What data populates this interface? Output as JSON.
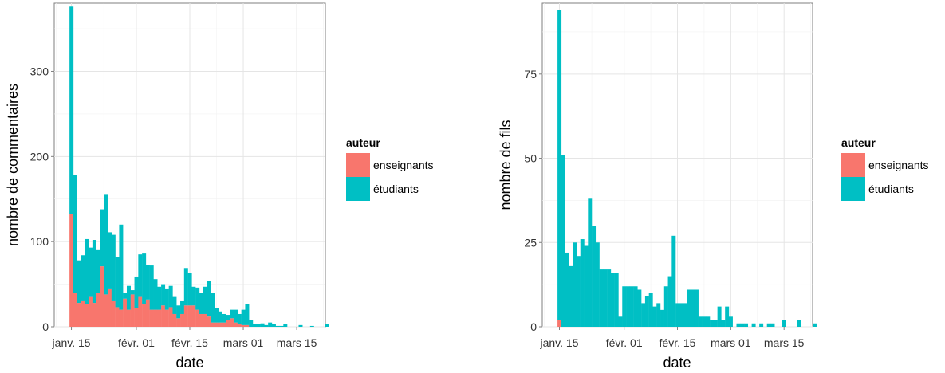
{
  "chart_data": [
    {
      "type": "bar",
      "stacked": true,
      "xlabel": "date",
      "ylabel": "nombre de commentaires",
      "ylim": [
        0,
        380
      ],
      "yticks": [
        0,
        100,
        200,
        300
      ],
      "x_ticks": [
        {
          "day": 15,
          "label": "janv. 15"
        },
        {
          "day": 32,
          "label": "févr. 01"
        },
        {
          "day": 46,
          "label": "févr. 15"
        },
        {
          "day": 60,
          "label": "mars 01"
        },
        {
          "day": 74,
          "label": "mars 15"
        }
      ],
      "xlim": [
        10.5,
        81.5
      ],
      "grid": true,
      "legend": {
        "title": "auteur",
        "placement": "right",
        "entries": [
          {
            "name": "enseignants",
            "color": "#F8766D"
          },
          {
            "name": "étudiants",
            "color": "#00BFC4"
          }
        ]
      },
      "x_start_label": "janv. 15",
      "series": [
        {
          "name": "enseignants",
          "color": "#F8766D",
          "values": [
            132,
            40,
            28,
            30,
            27,
            35,
            28,
            40,
            71,
            38,
            45,
            30,
            23,
            20,
            33,
            20,
            38,
            22,
            35,
            27,
            32,
            20,
            20,
            20,
            25,
            20,
            23,
            15,
            10,
            15,
            25,
            25,
            25,
            20,
            15,
            15,
            12,
            5,
            5,
            5,
            5,
            8,
            10,
            5,
            3,
            2,
            2,
            0,
            0,
            0,
            0,
            0,
            0,
            0,
            0,
            0,
            0,
            0,
            0,
            0,
            0,
            0,
            0,
            0,
            0,
            0,
            0,
            0
          ]
        },
        {
          "name": "étudiants",
          "color": "#00BFC4",
          "values": [
            244,
            138,
            50,
            54,
            76,
            58,
            74,
            50,
            67,
            117,
            66,
            78,
            59,
            100,
            7,
            28,
            5,
            37,
            50,
            59,
            41,
            52,
            36,
            27,
            25,
            25,
            25,
            20,
            15,
            15,
            44,
            38,
            22,
            26,
            25,
            32,
            42,
            35,
            17,
            13,
            10,
            6,
            10,
            15,
            12,
            18,
            25,
            8,
            3,
            3,
            4,
            2,
            5,
            3,
            1,
            1,
            3,
            0,
            0,
            0,
            2,
            0,
            0,
            1,
            0,
            0,
            0,
            3
          ]
        }
      ]
    },
    {
      "type": "bar",
      "stacked": true,
      "xlabel": "date",
      "ylabel": "nombre de fils",
      "ylim": [
        0,
        96
      ],
      "yticks": [
        0,
        25,
        50,
        75
      ],
      "x_ticks": [
        {
          "day": 15,
          "label": "janv. 15"
        },
        {
          "day": 32,
          "label": "févr. 01"
        },
        {
          "day": 46,
          "label": "févr. 15"
        },
        {
          "day": 60,
          "label": "mars 01"
        },
        {
          "day": 74,
          "label": "mars 15"
        }
      ],
      "xlim": [
        10.5,
        81.5
      ],
      "grid": true,
      "legend": {
        "title": "auteur",
        "placement": "right",
        "entries": [
          {
            "name": "enseignants",
            "color": "#F8766D"
          },
          {
            "name": "étudiants",
            "color": "#00BFC4"
          }
        ]
      },
      "series": [
        {
          "name": "enseignants",
          "color": "#F8766D",
          "values": [
            2,
            0,
            0,
            0,
            0,
            0,
            0,
            0,
            0,
            0,
            0,
            0,
            0,
            0,
            0,
            0,
            0,
            0,
            0,
            0,
            0,
            0,
            0,
            0,
            0,
            0,
            0,
            0,
            0,
            0,
            0,
            0,
            0,
            0,
            0,
            0,
            0,
            0,
            0,
            0,
            0,
            0,
            0,
            0,
            0,
            0,
            0,
            0,
            0,
            0,
            0,
            0,
            0,
            0,
            0,
            0,
            0,
            0,
            0,
            0,
            0,
            0,
            0,
            0,
            0,
            0,
            0,
            0
          ]
        },
        {
          "name": "étudiants",
          "color": "#00BFC4",
          "values": [
            92,
            51,
            22,
            18,
            25,
            21,
            26,
            24,
            38,
            30,
            25,
            17,
            17,
            17,
            16,
            16,
            3,
            12,
            12,
            12,
            12,
            11,
            7,
            9,
            10,
            6,
            7,
            5,
            12,
            15,
            27,
            7,
            7,
            7,
            11,
            11,
            11,
            3,
            3,
            3,
            2,
            2,
            6,
            2,
            6,
            3,
            0,
            1,
            1,
            1,
            0,
            1,
            0,
            1,
            0,
            1,
            1,
            0,
            0,
            2,
            0,
            0,
            0,
            2,
            0,
            0,
            0,
            1
          ]
        }
      ]
    }
  ]
}
